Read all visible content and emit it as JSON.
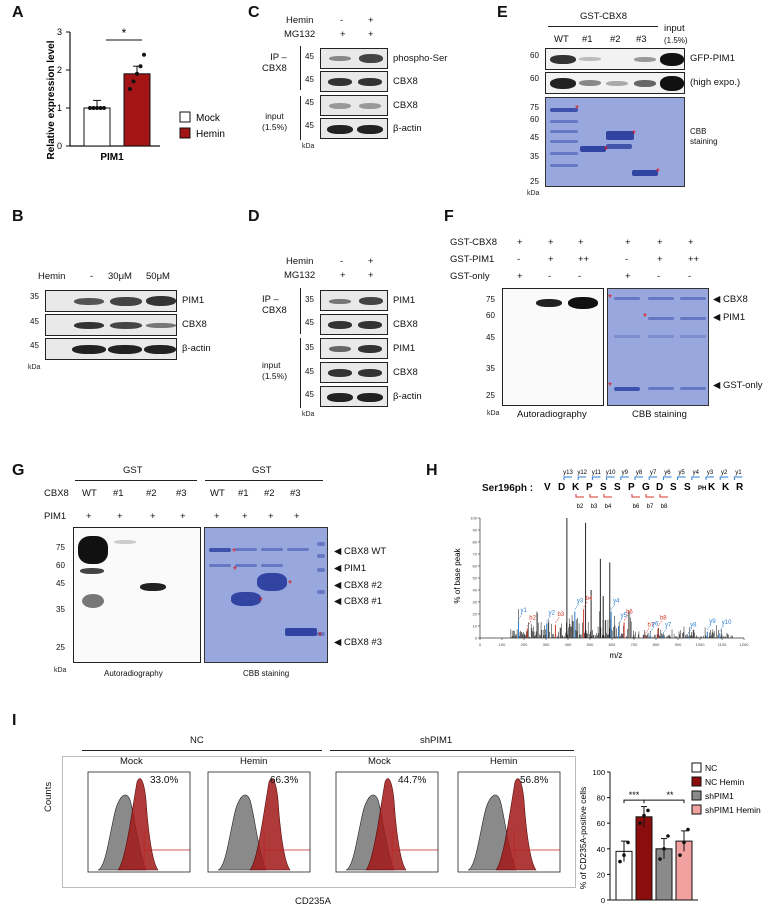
{
  "panels": {
    "A": {
      "label": "A",
      "chart_data": {
        "type": "bar",
        "categories": [
          "PIM1"
        ],
        "series": [
          {
            "name": "Mock",
            "values": [
              1.0
            ],
            "points": [
              1.0,
              1.0,
              1.0,
              1.0,
              1.0
            ],
            "color": "#ffffff"
          },
          {
            "name": "Hemin",
            "values": [
              1.9
            ],
            "points": [
              1.5,
              1.7,
              1.9,
              2.1,
              2.4
            ],
            "color": "#a31515"
          }
        ],
        "ylabel": "Relative expression level",
        "xlabel": "PIM1",
        "yticks": [
          "0",
          "1",
          "2",
          "3"
        ],
        "ylim": [
          0,
          3
        ],
        "significance": "*",
        "legend": [
          "Mock",
          "Hemin"
        ]
      }
    },
    "B": {
      "label": "B",
      "treatment": "Hemin",
      "lanes": [
        "-",
        "30μM",
        "50μM"
      ],
      "mw": [
        "35",
        "45",
        "45"
      ],
      "bands": [
        "PIM1",
        "CBX8",
        "β-actin"
      ],
      "kda": "kDa"
    },
    "C": {
      "label": "C",
      "hemin": "Hemin",
      "mg132": "MG132",
      "hemin_vals": [
        "-",
        "+"
      ],
      "mg132_vals": [
        "+",
        "+"
      ],
      "ip_label": "IP –\nCBX8",
      "input_label": "input\n(1.5%)",
      "mw": [
        "45",
        "45",
        "45",
        "45"
      ],
      "bands": [
        "phospho-Ser",
        "CBX8",
        "CBX8",
        "β-actin"
      ],
      "kda": "kDa"
    },
    "D": {
      "label": "D",
      "hemin": "Hemin",
      "mg132": "MG132",
      "hemin_vals": [
        "-",
        "+"
      ],
      "mg132_vals": [
        "+",
        "+"
      ],
      "ip_label": "IP –\nCBX8",
      "input_label": "input\n(1.5%)",
      "mw": [
        "35",
        "45",
        "35",
        "45",
        "45"
      ],
      "bands": [
        "PIM1",
        "CBX8",
        "PIM1",
        "CBX8",
        "β-actin"
      ],
      "kda": "kDa"
    },
    "E": {
      "label": "E",
      "header": "GST-CBX8",
      "lanes": [
        "WT",
        "#1",
        "#2",
        "#3",
        "input",
        "(1.5%)"
      ],
      "mw_top": [
        "60",
        "60"
      ],
      "mw_gel": [
        "75",
        "60",
        "45",
        "35",
        "25"
      ],
      "bands": [
        "GFP-PIM1",
        "(high expo.)",
        "CBB staining"
      ],
      "kda": "kDa"
    },
    "F": {
      "label": "F",
      "rows": [
        "GST-CBX8",
        "GST-PIM1",
        "GST-only"
      ],
      "vals": [
        [
          "+",
          "+",
          "+",
          "+",
          "+",
          "+"
        ],
        [
          "-",
          "+",
          "++",
          "-",
          "+",
          "++"
        ],
        [
          "+",
          "-",
          "-",
          "+",
          "-",
          "-"
        ]
      ],
      "mw": [
        "75",
        "60",
        "45",
        "35",
        "25"
      ],
      "arrows": [
        "CBX8",
        "PIM1",
        "GST-only"
      ],
      "captions": [
        "Autoradiography",
        "CBB staining"
      ],
      "kda": "kDa"
    },
    "G": {
      "label": "G",
      "gst": [
        "GST",
        "GST"
      ],
      "cbx8_label": "CBX8",
      "pim1_label": "PIM1",
      "lanes": [
        "WT",
        "#1",
        "#2",
        "#3",
        "WT",
        "#1",
        "#2",
        "#3"
      ],
      "pim1_vals": [
        "+",
        "+",
        "+",
        "+",
        "+",
        "+",
        "+",
        "+"
      ],
      "mw": [
        "75",
        "60",
        "45",
        "35",
        "25"
      ],
      "arrows": [
        "CBX8 WT",
        "PIM1",
        "CBX8 #2",
        "CBX8 #1",
        "CBX8 #3"
      ],
      "captions": [
        "Autoradiography",
        "CBB staining"
      ],
      "kda": "kDa"
    },
    "H": {
      "label": "H",
      "peptide_label": "Ser196ph :",
      "residues": [
        "V",
        "D",
        "K",
        "P",
        "S",
        "S",
        "P",
        "G",
        "D",
        "S",
        "S",
        "PH",
        "K",
        "K",
        "R"
      ],
      "y_ions": [
        "y13",
        "y12",
        "y11",
        "y10",
        "y9",
        "y8",
        "y7",
        "y6",
        "y5",
        "y4",
        "y3",
        "y2",
        "y1"
      ],
      "b_ions": [
        "b2",
        "b3",
        "b4",
        "b6",
        "b7",
        "b8"
      ],
      "chart_data": {
        "type": "bar",
        "ylabel": "% of base peak",
        "xlabel": "m/z",
        "xticks": [
          "0",
          "100",
          "200",
          "300",
          "400",
          "500",
          "600",
          "700",
          "800",
          "900",
          "1000",
          "1100",
          "1200"
        ],
        "yticks": [
          "0",
          "10",
          "20",
          "30",
          "40",
          "50",
          "60",
          "70",
          "80",
          "90",
          "100"
        ],
        "xlim": [
          0,
          1200
        ],
        "ylim": [
          0,
          100
        ],
        "annotations": [
          {
            "ion": "y1",
            "mz": 175,
            "intensity": 14
          },
          {
            "ion": "b2",
            "mz": 215,
            "intensity": 8
          },
          {
            "ion": "y2",
            "mz": 303,
            "intensity": 12
          },
          {
            "ion": "b3",
            "mz": 343,
            "intensity": 11
          },
          {
            "ion": "y3",
            "mz": 431,
            "intensity": 22
          },
          {
            "ion": "b4",
            "mz": 471,
            "intensity": 24
          },
          {
            "ion": "y4",
            "mz": 596,
            "intensity": 22
          },
          {
            "ion": "y5",
            "mz": 630,
            "intensity": 10
          },
          {
            "ion": "b6",
            "mz": 655,
            "intensity": 13
          },
          {
            "ion": "b7",
            "mz": 752,
            "intensity": 2
          },
          {
            "ion": "y6",
            "mz": 773,
            "intensity": 3
          },
          {
            "ion": "y7",
            "mz": 832,
            "intensity": 2
          },
          {
            "ion": "b8",
            "mz": 809,
            "intensity": 8
          },
          {
            "ion": "y8",
            "mz": 946,
            "intensity": 2
          },
          {
            "ion": "y9",
            "mz": 1033,
            "intensity": 5
          },
          {
            "ion": "y10",
            "mz": 1090,
            "intensity": 4
          }
        ],
        "major_peaks": [
          {
            "mz": 395,
            "intensity": 100
          },
          {
            "mz": 480,
            "intensity": 96
          },
          {
            "mz": 547,
            "intensity": 66
          },
          {
            "mz": 590,
            "intensity": 63
          },
          {
            "mz": 505,
            "intensity": 40
          },
          {
            "mz": 560,
            "intensity": 35
          }
        ]
      }
    },
    "I": {
      "label": "I",
      "groups": [
        "NC",
        "shPIM1"
      ],
      "subplots": [
        {
          "title": "Mock",
          "percent": "33.0%"
        },
        {
          "title": "Hemin",
          "percent": "66.3%"
        },
        {
          "title": "Mock",
          "percent": "44.7%"
        },
        {
          "title": "Hemin",
          "percent": "56.8%"
        }
      ],
      "ylabel": "Counts",
      "xlabel": "CD235A",
      "chart_data": {
        "type": "bar",
        "categories": [
          "NC",
          "NC Hemin",
          "shPIM1",
          "shPIM1 Hemin"
        ],
        "values": [
          38,
          65,
          40,
          46
        ],
        "points": [
          [
            30,
            35,
            45
          ],
          [
            60,
            66,
            70
          ],
          [
            32,
            40,
            50
          ],
          [
            35,
            45,
            55
          ]
        ],
        "colors": [
          "#ffffff",
          "#8b0d0d",
          "#8a8a8a",
          "#f2a1a1"
        ],
        "ylabel": "% of CD235A-positive cells",
        "yticks": [
          "0",
          "20",
          "40",
          "60",
          "80",
          "100"
        ],
        "ylim": [
          0,
          100
        ],
        "significance": [
          "***",
          "**"
        ],
        "legend": [
          "NC",
          "NC Hemin",
          "shPIM1",
          "shPIM1 Hemin"
        ]
      }
    }
  }
}
